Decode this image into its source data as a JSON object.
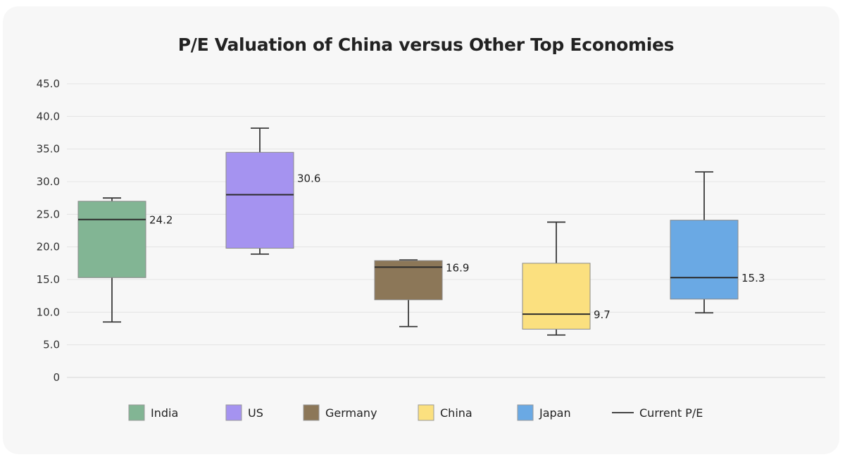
{
  "chart_data": {
    "type": "boxplot",
    "title": "P/E Valuation of China versus Other Top Economies",
    "xlabel": "",
    "ylabel": "",
    "ylim": [
      0,
      45
    ],
    "yticks": [
      "0",
      "5.0",
      "10.0",
      "15.0",
      "20.0",
      "25.0",
      "30.0",
      "35.0",
      "40.0",
      "45.0"
    ],
    "yticks_values": [
      0,
      5,
      10,
      15,
      20,
      25,
      30,
      35,
      40,
      45
    ],
    "grid": true,
    "legend_position": "bottom",
    "series": [
      {
        "name": "India",
        "color": "#82b594",
        "whisker_low": 8.5,
        "q1": 15.3,
        "median": 24.2,
        "q3": 27.0,
        "whisker_high": 27.5,
        "current_pe": 24.2,
        "current_pe_label": "24.2"
      },
      {
        "name": "US",
        "color": "#a593f0",
        "whisker_low": 18.9,
        "q1": 19.8,
        "median": 28.0,
        "q3": 34.5,
        "whisker_high": 38.2,
        "current_pe": 30.6,
        "current_pe_label": "30.6"
      },
      {
        "name": "Germany",
        "color": "#8c7758",
        "whisker_low": 7.8,
        "q1": 11.9,
        "median": 16.9,
        "q3": 17.9,
        "whisker_high": 18.0,
        "current_pe": 16.9,
        "current_pe_label": "16.9"
      },
      {
        "name": "China",
        "color": "#fbe07f",
        "whisker_low": 6.5,
        "q1": 7.4,
        "median": 9.7,
        "q3": 17.5,
        "whisker_high": 23.8,
        "current_pe": 9.7,
        "current_pe_label": "9.7"
      },
      {
        "name": "Japan",
        "color": "#6aa9e4",
        "whisker_low": 9.9,
        "q1": 12.0,
        "median": 15.3,
        "q3": 24.1,
        "whisker_high": 31.5,
        "current_pe": 15.3,
        "current_pe_label": "15.3"
      }
    ],
    "legend": {
      "current_pe_label": "Current P/E"
    }
  }
}
